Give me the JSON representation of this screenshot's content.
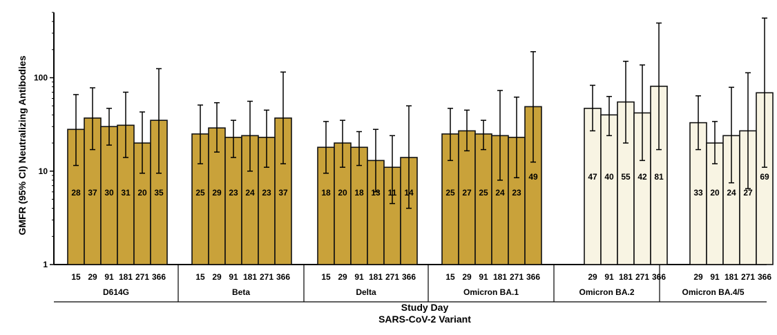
{
  "chart_data": {
    "type": "bar",
    "yscale": "log",
    "ylim": [
      1,
      500
    ],
    "yticks": [
      {
        "value": 1,
        "label": "1"
      },
      {
        "value": 10,
        "label": "10"
      },
      {
        "value": 100,
        "label": "100"
      }
    ],
    "ylabel": "GMFR (95% CI) Neutralizing Antibodies",
    "xlabel_line1": "Study Day",
    "xlabel_line2": "SARS-CoV-2 Variant",
    "colors": {
      "filled": "#c9a23a",
      "hollow": "#f8f4e3",
      "edge": "#111111"
    },
    "groups": [
      {
        "name": "D614G",
        "style": "filled",
        "bars": [
          {
            "day": "15",
            "value": 28,
            "ci": [
              11.5,
              66
            ]
          },
          {
            "day": "29",
            "value": 37,
            "ci": [
              17,
              78
            ]
          },
          {
            "day": "91",
            "value": 30,
            "ci": [
              19,
              47
            ]
          },
          {
            "day": "181",
            "value": 31,
            "ci": [
              14,
              70
            ]
          },
          {
            "day": "271",
            "value": 20,
            "ci": [
              9.5,
              43
            ]
          },
          {
            "day": "366",
            "value": 35,
            "ci": [
              9.5,
              125
            ]
          }
        ]
      },
      {
        "name": "Beta",
        "style": "filled",
        "bars": [
          {
            "day": "15",
            "value": 25,
            "ci": [
              12,
              51
            ]
          },
          {
            "day": "29",
            "value": 29,
            "ci": [
              16,
              54
            ]
          },
          {
            "day": "91",
            "value": 23,
            "ci": [
              14,
              35
            ]
          },
          {
            "day": "181",
            "value": 24,
            "ci": [
              10,
              56
            ]
          },
          {
            "day": "271",
            "value": 23,
            "ci": [
              11,
              45
            ]
          },
          {
            "day": "366",
            "value": 37,
            "ci": [
              12,
              115
            ]
          }
        ]
      },
      {
        "name": "Delta",
        "style": "filled",
        "bars": [
          {
            "day": "15",
            "value": 18,
            "ci": [
              9.5,
              34
            ]
          },
          {
            "day": "29",
            "value": 20,
            "ci": [
              11,
              35
            ]
          },
          {
            "day": "91",
            "value": 18,
            "ci": [
              11.5,
              26.5
            ]
          },
          {
            "day": "181",
            "value": 13,
            "ci": [
              6,
              28
            ]
          },
          {
            "day": "271",
            "value": 11,
            "ci": [
              4.5,
              24
            ]
          },
          {
            "day": "366",
            "value": 14,
            "ci": [
              4,
              50
            ]
          }
        ]
      },
      {
        "name": "Omicron BA.1",
        "style": "filled",
        "bars": [
          {
            "day": "15",
            "value": 25,
            "ci": [
              13,
              47
            ]
          },
          {
            "day": "29",
            "value": 27,
            "ci": [
              16.5,
              45
            ]
          },
          {
            "day": "91",
            "value": 25,
            "ci": [
              17,
              35
            ]
          },
          {
            "day": "181",
            "value": 24,
            "ci": [
              8,
              73
            ]
          },
          {
            "day": "271",
            "value": 23,
            "ci": [
              8.5,
              62
            ]
          },
          {
            "day": "366",
            "value": 49,
            "ci": [
              12.5,
              190
            ]
          }
        ]
      },
      {
        "name": "Omicron BA.2",
        "style": "hollow",
        "bars": [
          {
            "day": "29",
            "value": 47,
            "ci": [
              27,
              83
            ]
          },
          {
            "day": "91",
            "value": 40,
            "ci": [
              24,
              63
            ]
          },
          {
            "day": "181",
            "value": 55,
            "ci": [
              20,
              150
            ]
          },
          {
            "day": "271",
            "value": 42,
            "ci": [
              13,
              137
            ]
          },
          {
            "day": "366",
            "value": 81,
            "ci": [
              17,
              385
            ]
          }
        ]
      },
      {
        "name": "Omicron BA.4/5",
        "style": "hollow",
        "trailing_label": ".",
        "bars": [
          {
            "day": "29",
            "value": 33,
            "ci": [
              17,
              64
            ]
          },
          {
            "day": "91",
            "value": 20,
            "ci": [
              12,
              34
            ]
          },
          {
            "day": "181",
            "value": 24,
            "ci": [
              7.5,
              79
            ]
          },
          {
            "day": "271",
            "value": 27,
            "ci": [
              6.5,
              113
            ]
          },
          {
            "day": "366",
            "value": 69,
            "ci": [
              11,
              435
            ]
          }
        ]
      }
    ]
  }
}
